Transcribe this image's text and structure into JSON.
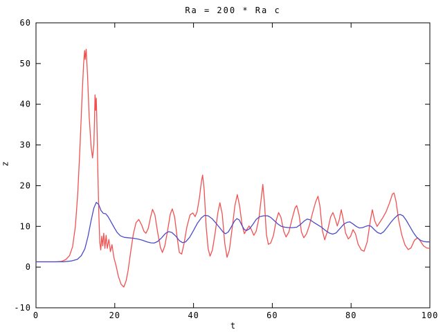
{
  "chart_data": {
    "type": "line",
    "title": "Ra = 200 * Ra c",
    "xlabel": "t",
    "ylabel": "z",
    "xlim": [
      0,
      100
    ],
    "ylim": [
      -10,
      60
    ],
    "xticks": [
      0,
      20,
      40,
      60,
      80,
      100
    ],
    "yticks": [
      -10,
      0,
      10,
      20,
      30,
      40,
      50,
      60
    ],
    "grid": false,
    "legend": "none",
    "frame_color": "#000000",
    "series": [
      {
        "name": "red-series",
        "color": "#f25050",
        "points": [
          [
            0,
            1.3
          ],
          [
            3,
            1.3
          ],
          [
            5,
            1.3
          ],
          [
            6.5,
            1.4
          ],
          [
            7.5,
            1.8
          ],
          [
            8.5,
            2.8
          ],
          [
            9.3,
            5
          ],
          [
            10,
            10
          ],
          [
            10.6,
            18
          ],
          [
            11.2,
            30
          ],
          [
            11.7,
            42
          ],
          [
            12.1,
            50
          ],
          [
            12.35,
            53.2
          ],
          [
            12.5,
            51
          ],
          [
            12.75,
            53.5
          ],
          [
            13.1,
            47
          ],
          [
            13.5,
            37
          ],
          [
            14,
            29.5
          ],
          [
            14.35,
            26.8
          ],
          [
            14.7,
            30
          ],
          [
            14.85,
            36
          ],
          [
            15,
            42.3
          ],
          [
            15.15,
            38.5
          ],
          [
            15.3,
            41.5
          ],
          [
            15.5,
            34
          ],
          [
            15.7,
            24
          ],
          [
            15.95,
            13
          ],
          [
            16.2,
            6
          ],
          [
            16.45,
            4.2
          ],
          [
            16.7,
            7.6
          ],
          [
            16.95,
            5.2
          ],
          [
            17.2,
            8.3
          ],
          [
            17.5,
            4.6
          ],
          [
            17.8,
            7.8
          ],
          [
            18.1,
            4.6
          ],
          [
            18.5,
            6.8
          ],
          [
            18.9,
            3.8
          ],
          [
            19.3,
            5.5
          ],
          [
            19.8,
            2.2
          ],
          [
            20.3,
            0.5
          ],
          [
            20.9,
            -2.2
          ],
          [
            21.6,
            -4.2
          ],
          [
            22.3,
            -4.9
          ],
          [
            22.9,
            -3.3
          ],
          [
            23.4,
            -0.8
          ],
          [
            24,
            3.5
          ],
          [
            24.7,
            8
          ],
          [
            25.4,
            10.9
          ],
          [
            26.1,
            11.7
          ],
          [
            26.8,
            10.4
          ],
          [
            27.4,
            8.8
          ],
          [
            27.9,
            8.3
          ],
          [
            28.5,
            9.5
          ],
          [
            29.1,
            12.3
          ],
          [
            29.6,
            14.2
          ],
          [
            30.2,
            12.8
          ],
          [
            30.9,
            8.5
          ],
          [
            31.6,
            4.8
          ],
          [
            32.1,
            3.6
          ],
          [
            32.7,
            5.2
          ],
          [
            33.4,
            8.8
          ],
          [
            34.1,
            13
          ],
          [
            34.6,
            14.3
          ],
          [
            35.2,
            12.3
          ],
          [
            35.9,
            6.8
          ],
          [
            36.4,
            3.6
          ],
          [
            37,
            3.2
          ],
          [
            37.6,
            5.8
          ],
          [
            38.3,
            9.8
          ],
          [
            39.1,
            12.8
          ],
          [
            39.8,
            13.3
          ],
          [
            40.4,
            12.4
          ],
          [
            40.9,
            13.6
          ],
          [
            41.5,
            17
          ],
          [
            42,
            21
          ],
          [
            42.3,
            22.6
          ],
          [
            42.7,
            19
          ],
          [
            43.2,
            10
          ],
          [
            43.7,
            4.5
          ],
          [
            44.2,
            2.7
          ],
          [
            44.8,
            4.2
          ],
          [
            45.5,
            8.5
          ],
          [
            46.2,
            13.5
          ],
          [
            46.7,
            15.8
          ],
          [
            47.3,
            13
          ],
          [
            47.9,
            6
          ],
          [
            48.5,
            2.4
          ],
          [
            49.1,
            4.2
          ],
          [
            49.8,
            9.5
          ],
          [
            50.5,
            15
          ],
          [
            51.1,
            17.8
          ],
          [
            51.7,
            15
          ],
          [
            52.3,
            10.5
          ],
          [
            52.9,
            8.2
          ],
          [
            53.5,
            9.2
          ],
          [
            54.1,
            10.1
          ],
          [
            54.7,
            9.2
          ],
          [
            55.3,
            7.8
          ],
          [
            55.9,
            8.8
          ],
          [
            56.6,
            12
          ],
          [
            57.2,
            17
          ],
          [
            57.6,
            20.3
          ],
          [
            58,
            16
          ],
          [
            58.5,
            8
          ],
          [
            59,
            5.6
          ],
          [
            59.6,
            5.9
          ],
          [
            60.3,
            7.8
          ],
          [
            61,
            11.5
          ],
          [
            61.6,
            13.4
          ],
          [
            62.2,
            12.2
          ],
          [
            62.9,
            8.8
          ],
          [
            63.5,
            7.4
          ],
          [
            64.2,
            8.6
          ],
          [
            65,
            11.8
          ],
          [
            65.8,
            14.6
          ],
          [
            66.2,
            15.1
          ],
          [
            66.8,
            12.8
          ],
          [
            67.4,
            8.6
          ],
          [
            68,
            7.2
          ],
          [
            68.7,
            8.2
          ],
          [
            69.4,
            10.2
          ],
          [
            70.2,
            13.2
          ],
          [
            71,
            16
          ],
          [
            71.6,
            17.4
          ],
          [
            72.1,
            15
          ],
          [
            72.7,
            9
          ],
          [
            73.3,
            6.7
          ],
          [
            74,
            8.8
          ],
          [
            74.8,
            12.3
          ],
          [
            75.4,
            13.4
          ],
          [
            76,
            11.8
          ],
          [
            76.5,
            10.1
          ],
          [
            77,
            11.6
          ],
          [
            77.5,
            14.1
          ],
          [
            78,
            11.8
          ],
          [
            78.6,
            8.4
          ],
          [
            79.3,
            6.9
          ],
          [
            79.9,
            7.6
          ],
          [
            80.5,
            9.2
          ],
          [
            81.1,
            8.2
          ],
          [
            81.8,
            5.6
          ],
          [
            82.6,
            4.2
          ],
          [
            83.3,
            3.9
          ],
          [
            84.1,
            6.2
          ],
          [
            84.9,
            11.5
          ],
          [
            85.4,
            14.1
          ],
          [
            86,
            11.4
          ],
          [
            86.6,
            10
          ],
          [
            87.3,
            11
          ],
          [
            88.1,
            12.2
          ],
          [
            88.9,
            13.6
          ],
          [
            89.7,
            15.6
          ],
          [
            90.5,
            17.9
          ],
          [
            90.9,
            18.2
          ],
          [
            91.4,
            16.2
          ],
          [
            92.1,
            11.5
          ],
          [
            92.9,
            7.8
          ],
          [
            93.7,
            5.4
          ],
          [
            94.5,
            4.3
          ],
          [
            95.2,
            4.7
          ],
          [
            96.1,
            6.6
          ],
          [
            96.9,
            7.2
          ],
          [
            97.6,
            6.4
          ],
          [
            98.4,
            5.2
          ],
          [
            99.2,
            4.7
          ],
          [
            100,
            4.6
          ]
        ]
      },
      {
        "name": "blue-series",
        "color": "#4a4ac8",
        "points": [
          [
            0,
            1.3
          ],
          [
            4,
            1.3
          ],
          [
            7,
            1.3
          ],
          [
            9,
            1.5
          ],
          [
            10.5,
            1.9
          ],
          [
            11.5,
            2.8
          ],
          [
            12.4,
            4.5
          ],
          [
            13.2,
            7.5
          ],
          [
            14,
            11.5
          ],
          [
            14.7,
            14.5
          ],
          [
            15.3,
            15.9
          ],
          [
            15.9,
            15.4
          ],
          [
            16.5,
            13.9
          ],
          [
            17.1,
            13.2
          ],
          [
            17.7,
            13.1
          ],
          [
            18.3,
            12.4
          ],
          [
            19,
            11.2
          ],
          [
            19.8,
            9.8
          ],
          [
            20.6,
            8.5
          ],
          [
            21.4,
            7.7
          ],
          [
            22.4,
            7.3
          ],
          [
            23.5,
            7.2
          ],
          [
            24.6,
            7.1
          ],
          [
            25.8,
            6.9
          ],
          [
            27,
            6.6
          ],
          [
            28.2,
            6.2
          ],
          [
            29.2,
            5.95
          ],
          [
            30,
            5.9
          ],
          [
            30.9,
            6.3
          ],
          [
            31.9,
            7.2
          ],
          [
            32.9,
            8.3
          ],
          [
            33.7,
            8.7
          ],
          [
            34.5,
            8.5
          ],
          [
            35.5,
            7.6
          ],
          [
            36.4,
            6.5
          ],
          [
            37.2,
            6
          ],
          [
            38,
            6.2
          ],
          [
            39,
            7.3
          ],
          [
            40,
            9
          ],
          [
            41,
            10.8
          ],
          [
            42,
            12.1
          ],
          [
            42.8,
            12.7
          ],
          [
            43.7,
            12.6
          ],
          [
            44.7,
            11.9
          ],
          [
            45.7,
            10.8
          ],
          [
            46.7,
            9.6
          ],
          [
            47.5,
            8.6
          ],
          [
            48.1,
            8.2
          ],
          [
            48.8,
            8.6
          ],
          [
            49.6,
            9.9
          ],
          [
            50.4,
            11.3
          ],
          [
            51,
            11.9
          ],
          [
            51.6,
            11.6
          ],
          [
            52.3,
            10.2
          ],
          [
            52.9,
            9.2
          ],
          [
            53.5,
            9
          ],
          [
            54.2,
            9.4
          ],
          [
            55,
            10.4
          ],
          [
            55.9,
            11.7
          ],
          [
            56.8,
            12.4
          ],
          [
            57.8,
            12.6
          ],
          [
            58.8,
            12.6
          ],
          [
            59.6,
            12.2
          ],
          [
            60.5,
            11.4
          ],
          [
            61.4,
            10.6
          ],
          [
            62.3,
            10
          ],
          [
            63.2,
            9.8
          ],
          [
            64.2,
            9.7
          ],
          [
            65.2,
            9.7
          ],
          [
            66.2,
            9.8
          ],
          [
            67.2,
            10.5
          ],
          [
            68.2,
            11.4
          ],
          [
            68.9,
            11.8
          ],
          [
            69.6,
            11.6
          ],
          [
            70.5,
            11
          ],
          [
            71.5,
            10.4
          ],
          [
            72.5,
            9.8
          ],
          [
            73.5,
            9
          ],
          [
            74.4,
            8.4
          ],
          [
            75.3,
            8.1
          ],
          [
            76.2,
            8.4
          ],
          [
            77.2,
            9.5
          ],
          [
            78.2,
            10.6
          ],
          [
            79,
            11
          ],
          [
            79.7,
            11.1
          ],
          [
            80.5,
            10.6
          ],
          [
            81.3,
            10
          ],
          [
            82.1,
            9.6
          ],
          [
            82.9,
            9.7
          ],
          [
            83.7,
            10
          ],
          [
            84.4,
            10.2
          ],
          [
            85.1,
            10
          ],
          [
            85.9,
            9.2
          ],
          [
            86.7,
            8.5
          ],
          [
            87.5,
            8.2
          ],
          [
            88.3,
            8.7
          ],
          [
            89.2,
            9.8
          ],
          [
            90.1,
            11
          ],
          [
            91,
            12
          ],
          [
            91.9,
            12.8
          ],
          [
            92.5,
            12.9
          ],
          [
            93.2,
            12.6
          ],
          [
            94,
            11.5
          ],
          [
            94.9,
            10
          ],
          [
            95.8,
            8.5
          ],
          [
            96.7,
            7.3
          ],
          [
            97.6,
            6.6
          ],
          [
            98.4,
            6.3
          ],
          [
            99.2,
            6.2
          ],
          [
            100,
            6.2
          ]
        ]
      }
    ]
  }
}
